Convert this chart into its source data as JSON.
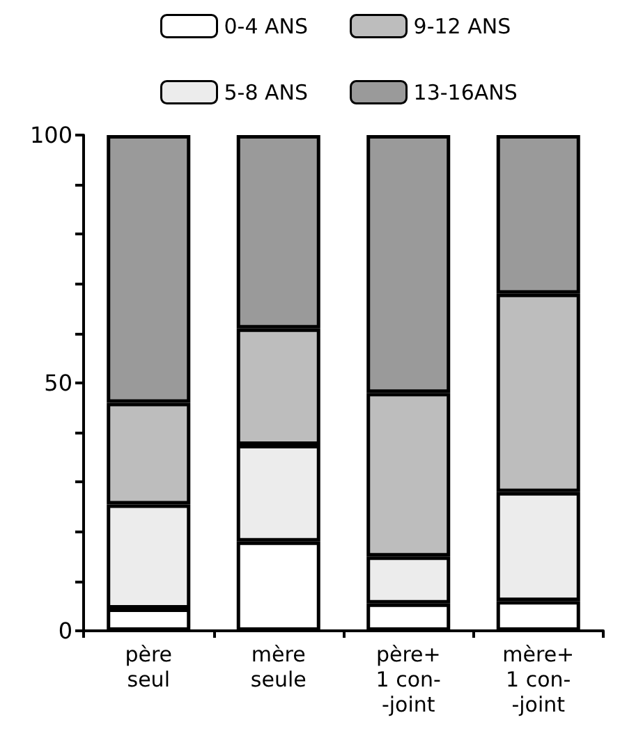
{
  "chart_data": {
    "type": "bar",
    "stacked": true,
    "categories": [
      "père\nseul",
      "mère\nseule",
      "père+\n1 con-\n-joint",
      "mère+\n1 con-\n-joint"
    ],
    "series": [
      {
        "name": "0-4 ANS",
        "color": "#ffffff",
        "values": [
          4.5,
          18,
          5.5,
          6
        ]
      },
      {
        "name": "5-8 ANS",
        "color": "#ececec",
        "values": [
          21,
          19.5,
          9.5,
          22
        ]
      },
      {
        "name": "9-12 ANS",
        "color": "#bdbdbd",
        "values": [
          20.5,
          23.5,
          33,
          40
        ]
      },
      {
        "name": "13-16ANS",
        "color": "#9a9a9a",
        "values": [
          54,
          39,
          52,
          32
        ]
      }
    ],
    "ylim": [
      0,
      100
    ],
    "yticks": [
      0,
      {
        "value": 10,
        "label": null
      },
      {
        "value": 20,
        "label": null
      },
      {
        "value": 30,
        "label": null
      },
      {
        "value": 40,
        "label": null
      },
      50,
      {
        "value": 60,
        "label": null
      },
      {
        "value": 70,
        "label": null
      },
      {
        "value": 80,
        "label": null
      },
      {
        "value": 90,
        "label": null
      },
      100
    ],
    "grid": false,
    "legend": "top"
  }
}
